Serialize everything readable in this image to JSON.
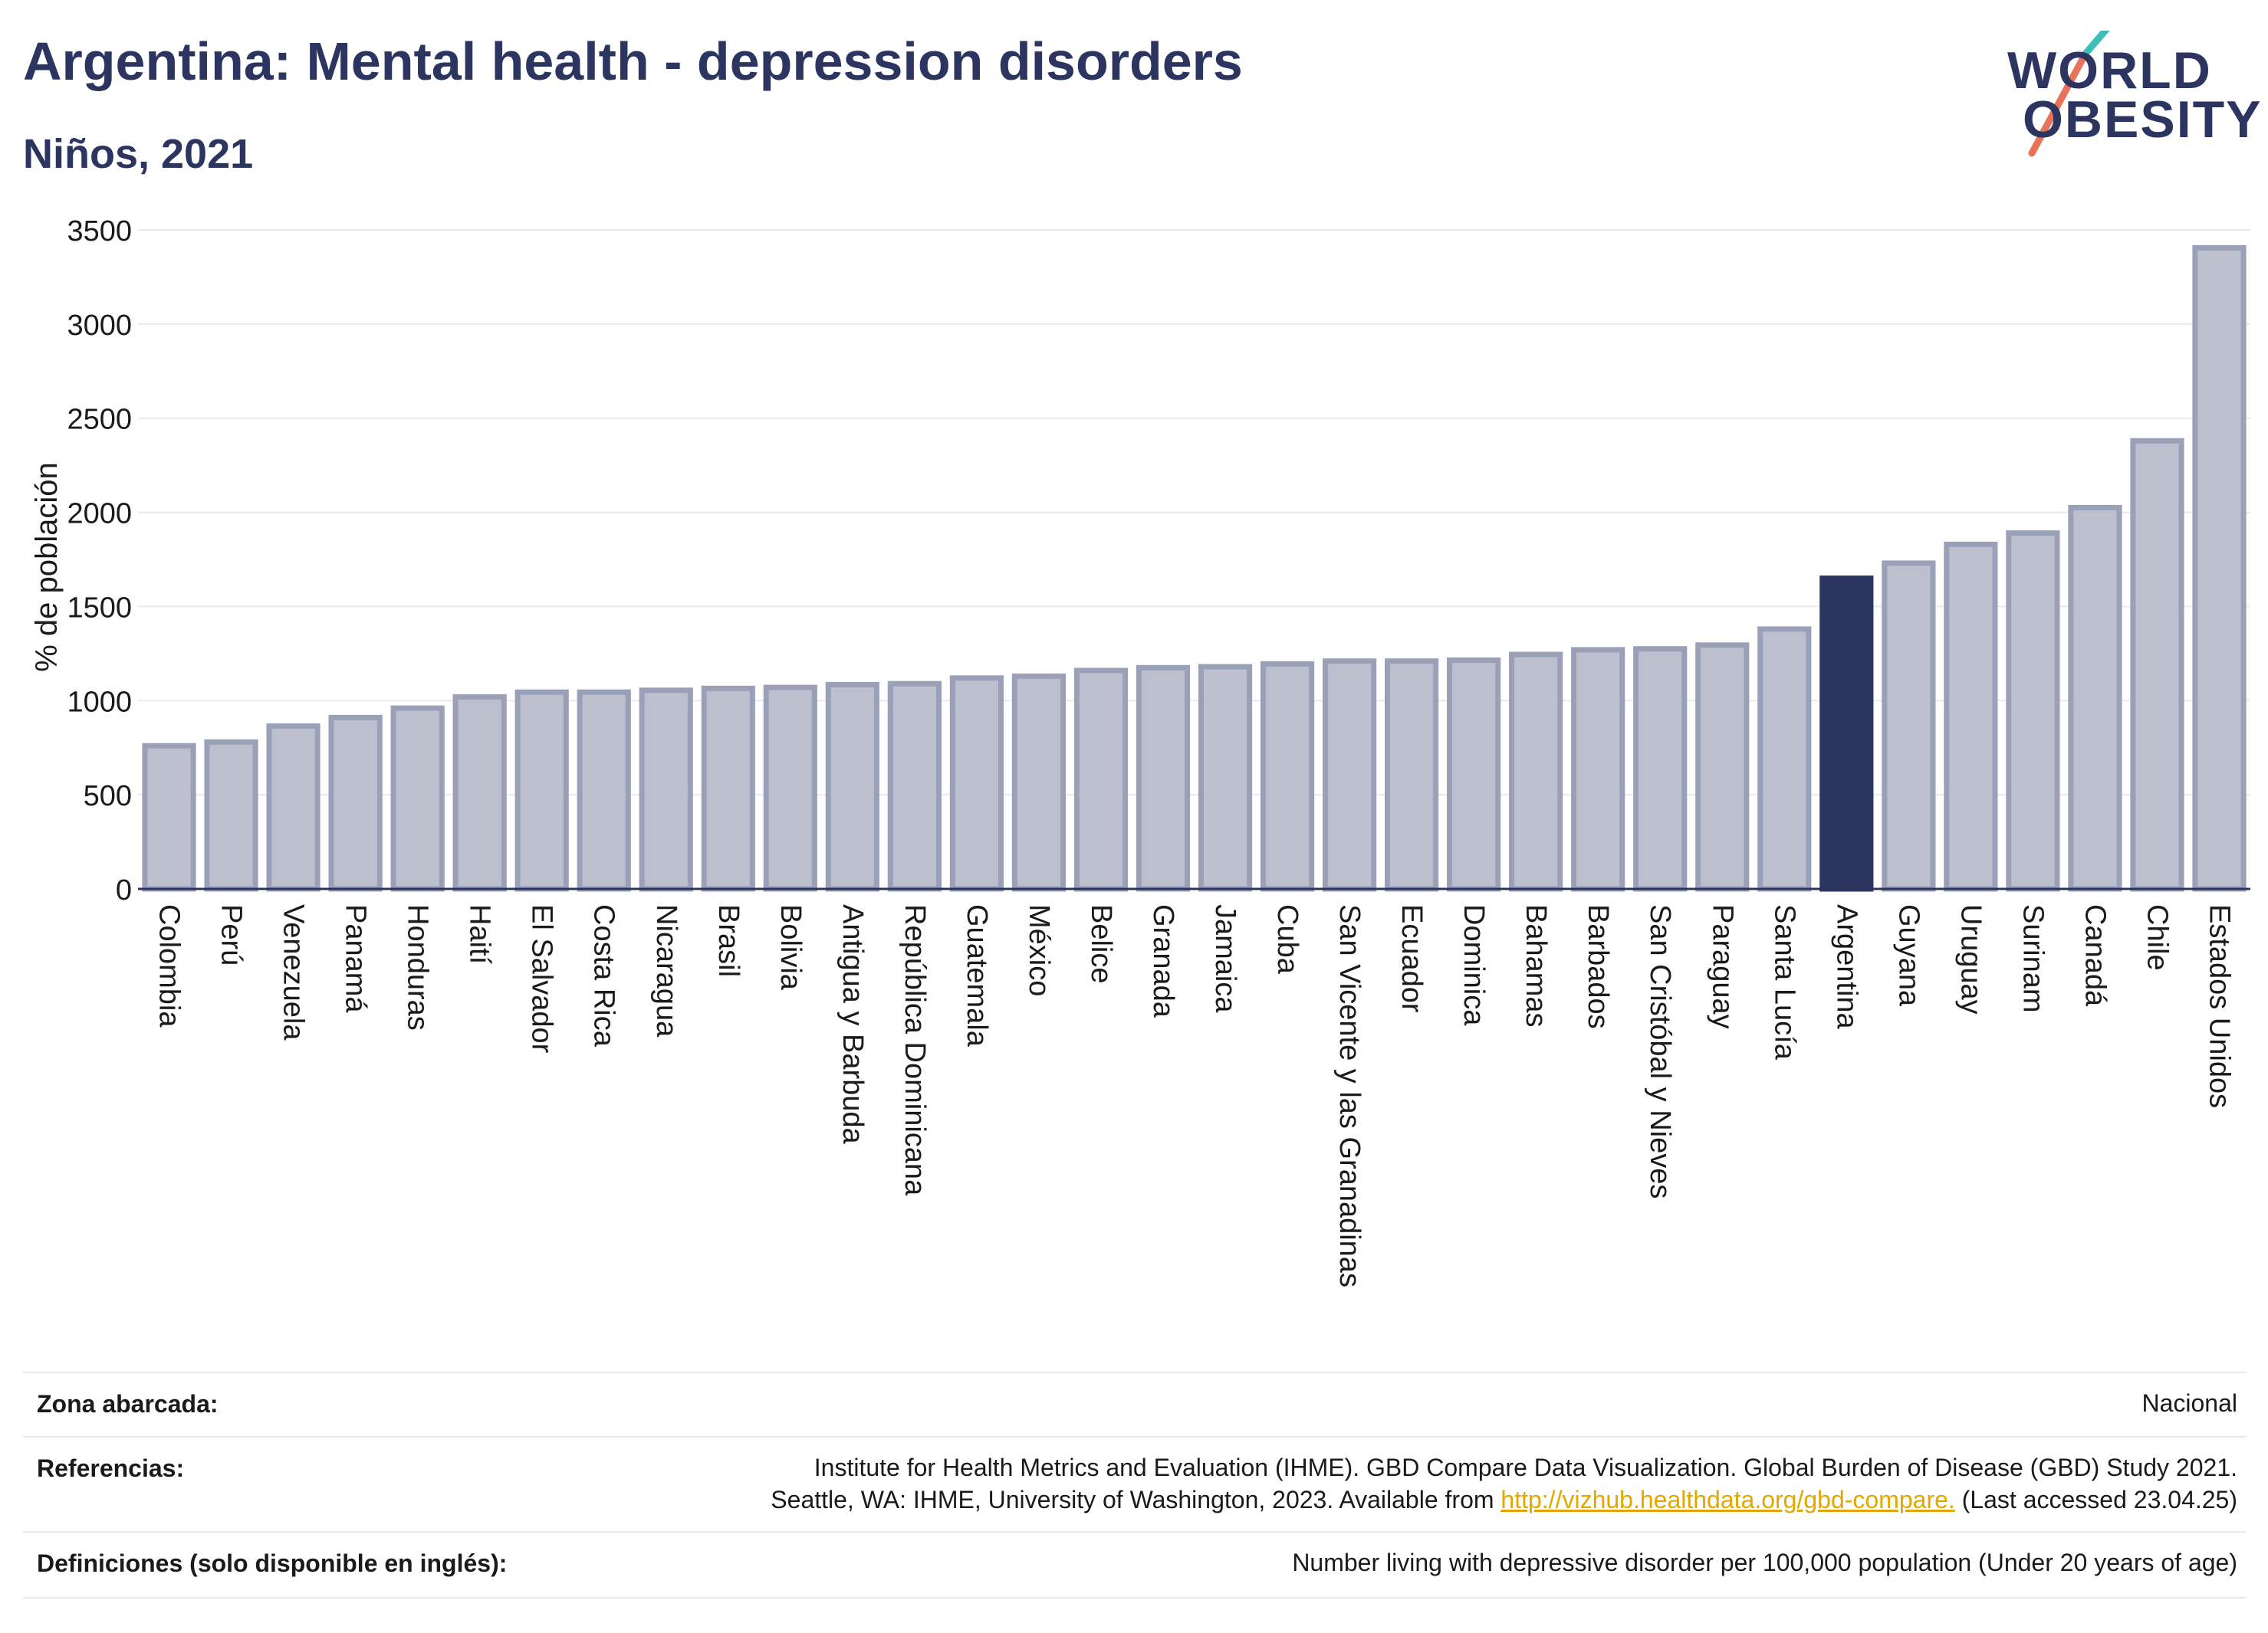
{
  "header": {
    "title": "Argentina: Mental health - depression disorders",
    "subtitle": "Niños, 2021"
  },
  "logo": {
    "line1": "WORLD",
    "line2": "OBESITY"
  },
  "colors": {
    "highlight": "#2b3560",
    "bar": "#bcc0ce",
    "bar_border": "#9aa0b8",
    "text": "#2b3560",
    "link": "#e0a800"
  },
  "chart_data": {
    "type": "bar",
    "title": "Argentina: Mental health - depression disorders",
    "subtitle": "Niños, 2021",
    "xlabel": "",
    "ylabel": "% de población",
    "ylim": [
      0,
      3500
    ],
    "yticks": [
      0,
      500,
      1000,
      1500,
      2000,
      2500,
      3000,
      3500
    ],
    "grid": true,
    "highlight": "Argentina",
    "categories": [
      "Colombia",
      "Perú",
      "Venezuela",
      "Panamá",
      "Honduras",
      "Haití",
      "El Salvador",
      "Costa Rica",
      "Nicaragua",
      "Brasil",
      "Bolivia",
      "Antigua y Barbuda",
      "República Dominicana",
      "Guatemala",
      "México",
      "Belice",
      "Granada",
      "Jamaica",
      "Cuba",
      "San Vicente y las Granadinas",
      "Ecuador",
      "Dominica",
      "Bahamas",
      "Barbados",
      "San Cristóbal y Nieves",
      "Paraguay",
      "Santa Lucía",
      "Argentina",
      "Guyana",
      "Uruguay",
      "Surinam",
      "Canadá",
      "Chile",
      "Estados Unidos"
    ],
    "values": [
      760,
      780,
      865,
      910,
      960,
      1020,
      1045,
      1045,
      1055,
      1065,
      1070,
      1085,
      1090,
      1120,
      1130,
      1160,
      1175,
      1180,
      1195,
      1210,
      1210,
      1215,
      1245,
      1270,
      1275,
      1295,
      1380,
      1650,
      1730,
      1830,
      1890,
      2025,
      2380,
      3405
    ]
  },
  "footer": {
    "zona_label": "Zona abarcada:",
    "zona_value": "Nacional",
    "ref_label": "Referencias:",
    "ref_line1": "Institute for Health Metrics and Evaluation (IHME). GBD Compare Data Visualization. Global Burden of Disease (GBD) Study 2021.",
    "ref_line2_pre": "Seattle, WA: IHME, University of Washington, 2023. Available from ",
    "ref_link": "http://vizhub.healthdata.org/gbd-compare.",
    "ref_line2_post": " (Last accessed 23.04.25)",
    "def_label": "Definiciones (solo disponible en inglés):",
    "def_value": "Number living with depressive disorder per 100,000 population (Under 20 years of age)"
  }
}
